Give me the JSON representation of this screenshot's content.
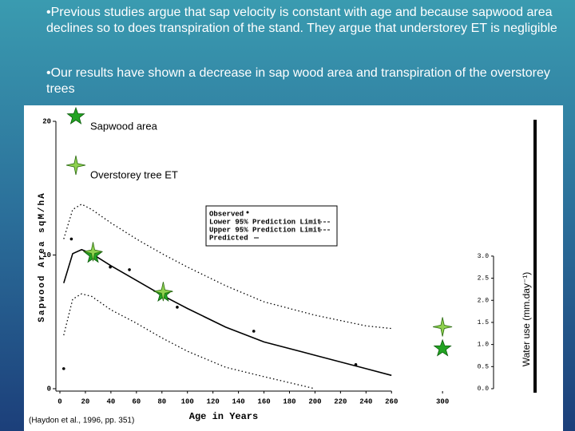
{
  "bullets": [
    "•Previous studies argue that sap velocity is constant with age and because sapwood area declines so to does transpiration of the stand.  They argue that understorey ET is negligible",
    "•Our results have shown a decrease in sap wood area and transpiration of the overstorey trees"
  ],
  "citation": "(Haydon et al., 1996, pp. 351)",
  "chart_data": {
    "type": "line",
    "x_label": "Age in Years",
    "y_label": "Sapwood Area sqM/hA",
    "y2_label": "Water use (mm.day⁻¹)",
    "xlim": [
      0,
      345
    ],
    "xticks": [
      0,
      20,
      40,
      60,
      80,
      100,
      120,
      140,
      160,
      180,
      200,
      220,
      240,
      260,
      300
    ],
    "ylim": [
      0,
      20
    ],
    "yticks": [
      0,
      10,
      20
    ],
    "y2lim": [
      0,
      6.05
    ],
    "y2ticks": [
      {
        "value": 0,
        "label": "0.0"
      },
      0.5,
      {
        "value": 1,
        "label": "1.0"
      },
      1.5,
      {
        "value": 2,
        "label": "2.0"
      },
      2.5,
      {
        "value": 3,
        "label": "3.0"
      }
    ],
    "series": [
      {
        "name": "Observed",
        "style": "points",
        "color": "#000000",
        "x": [
          3,
          9,
          39.5,
          54.5,
          92,
          152,
          232
        ],
        "values": [
          1.5,
          11.2,
          9.1,
          8.9,
          6.1,
          4.3,
          1.8
        ]
      },
      {
        "name": "Lower 95% Prediction Limit",
        "style": "dotted",
        "color": "#000000",
        "x": [
          3,
          10,
          17,
          25,
          40,
          60,
          80,
          100,
          130,
          160,
          200
        ],
        "values": [
          4.0,
          6.7,
          7.1,
          6.9,
          5.9,
          4.9,
          3.8,
          2.8,
          1.6,
          0.9,
          0
        ]
      },
      {
        "name": "Upper 95% Prediction Limit",
        "style": "dotted",
        "color": "#000000",
        "x": [
          3,
          10,
          17,
          25,
          40,
          60,
          80,
          100,
          130,
          160,
          200,
          240,
          260
        ],
        "values": [
          11.2,
          13.4,
          13.8,
          13.4,
          12.4,
          11.2,
          10.1,
          9.1,
          7.7,
          6.5,
          5.5,
          4.7,
          4.5
        ]
      },
      {
        "name": "Predicted",
        "style": "solid",
        "color": "#000000",
        "x": [
          3,
          10,
          17,
          25,
          40,
          60,
          80,
          100,
          130,
          160,
          200,
          240,
          260
        ],
        "values": [
          7.9,
          10.1,
          10.4,
          10.1,
          9.2,
          8.1,
          7.0,
          6.0,
          4.6,
          3.5,
          2.5,
          1.5,
          1.0
        ]
      },
      {
        "name": "Sapwood area",
        "style": "star",
        "color": "#22a322",
        "x": [
          26,
          81,
          300
        ],
        "values": [
          10.0,
          7.1,
          3.0
        ]
      },
      {
        "name": "Overstorey tree ET",
        "style": "cross-star",
        "color": "#8fd14f",
        "axis": "y2",
        "x": [
          26,
          81,
          300
        ],
        "values": [
          3.1,
          2.2,
          1.4
        ]
      }
    ]
  }
}
